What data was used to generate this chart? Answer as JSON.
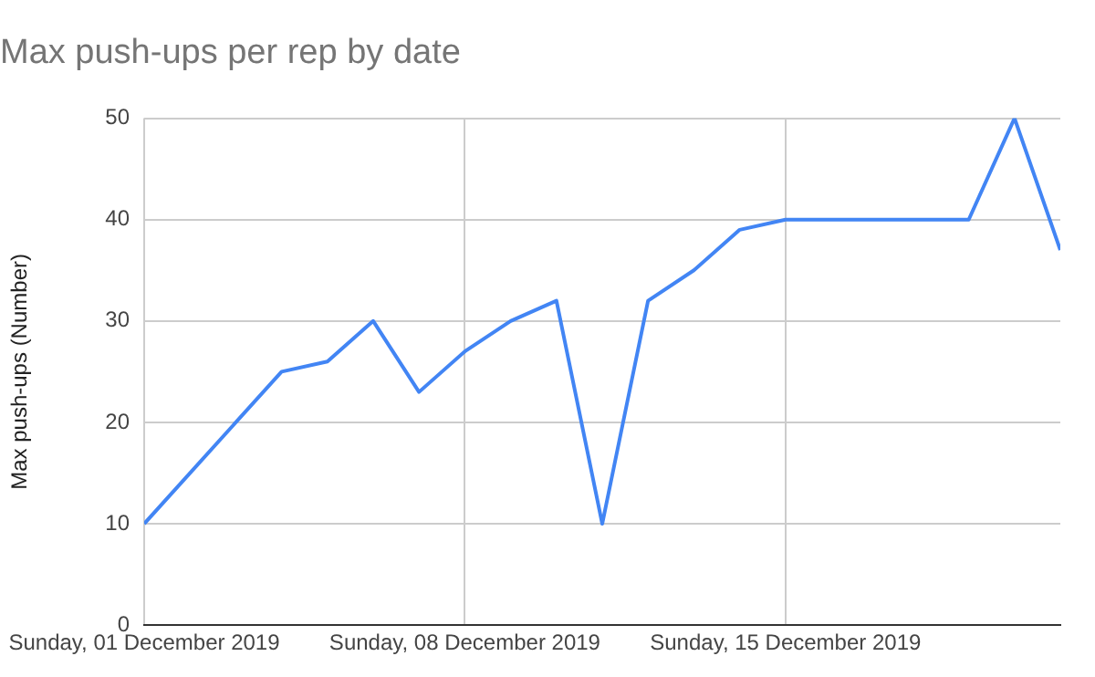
{
  "chart_data": {
    "type": "line",
    "title": "Max push-ups per rep by date",
    "ylabel": "Max push-ups (Number)",
    "x": [
      "2019-12-01",
      "2019-12-04",
      "2019-12-05",
      "2019-12-06",
      "2019-12-07",
      "2019-12-08",
      "2019-12-09",
      "2019-12-10",
      "2019-12-11",
      "2019-12-12",
      "2019-12-13",
      "2019-12-14",
      "2019-12-15",
      "2019-12-16",
      "2019-12-17",
      "2019-12-18",
      "2019-12-19",
      "2019-12-20",
      "2019-12-21"
    ],
    "series": [
      {
        "color": "#4285f4",
        "values": [
          10,
          25,
          26,
          30,
          23,
          27,
          30,
          32,
          10,
          32,
          35,
          39,
          40,
          40,
          40,
          40,
          40,
          50,
          37
        ]
      }
    ],
    "xlim": [
      "2019-12-01",
      "2019-12-21"
    ],
    "xticks": [
      {
        "value": "2019-12-01",
        "label": "Sunday, 01 December 2019"
      },
      {
        "value": "2019-12-08",
        "label": "Sunday, 08 December 2019"
      },
      {
        "value": "2019-12-15",
        "label": "Sunday, 15 December 2019"
      }
    ],
    "ylim": [
      0,
      50
    ],
    "yticks": [
      0,
      10,
      20,
      30,
      40,
      50
    ],
    "grid": true,
    "marker": "none",
    "line_style": "solid",
    "legend": false
  }
}
